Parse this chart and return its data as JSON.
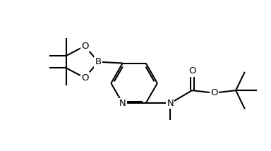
{
  "bg_color": "#ffffff",
  "line_color": "#000000",
  "lw": 1.5,
  "fig_width": 3.84,
  "fig_height": 2.14,
  "dpi": 100,
  "font_size": 9.5,
  "xlim": [
    0,
    10.5
  ],
  "ylim": [
    0,
    5.8
  ]
}
